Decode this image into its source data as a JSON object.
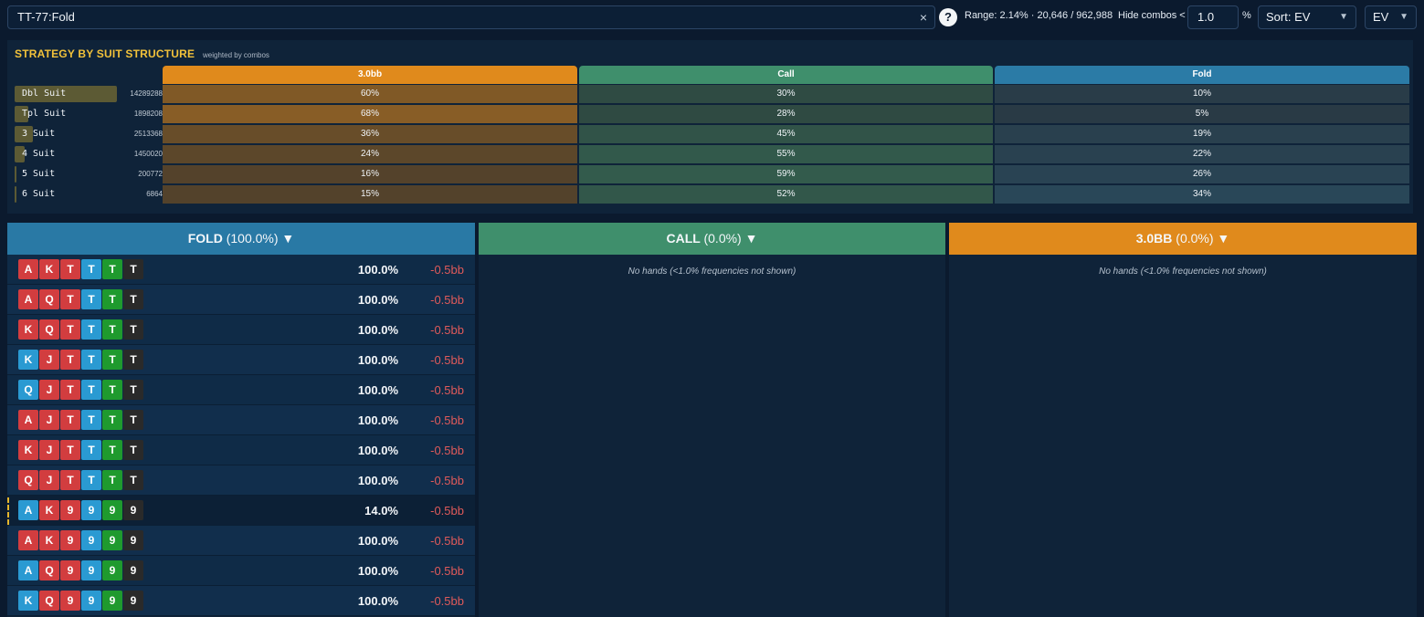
{
  "topbar": {
    "search_value": "TT-77:Fold",
    "clear_icon": "×",
    "help_icon": "?",
    "range_text": "Range: 2.14% · 20,646 / 962,988",
    "hide_label": "Hide combos <",
    "hide_value": "1.0",
    "hide_unit": "%",
    "sort_value": "Sort: EV",
    "ev_value": "EV"
  },
  "suit_panel": {
    "title": "STRATEGY BY SUIT STRUCTURE",
    "subtitle": "weighted by combos",
    "columns": [
      {
        "label": "3.0bb",
        "color": "#e08a1c"
      },
      {
        "label": "Call",
        "color": "#3f8f6c"
      },
      {
        "label": "Fold",
        "color": "#2b7ba6"
      }
    ],
    "rows": [
      {
        "label": "Dbl Suit",
        "count": "14289288",
        "share": 1.0,
        "cells": [
          "60%",
          "30%",
          "10%"
        ],
        "vals": [
          60,
          30,
          10
        ]
      },
      {
        "label": "Tpl Suit",
        "count": "1898208",
        "share": 0.13,
        "cells": [
          "68%",
          "28%",
          "5%"
        ],
        "vals": [
          68,
          28,
          5
        ]
      },
      {
        "label": "3 Suit",
        "count": "2513368",
        "share": 0.18,
        "cells": [
          "36%",
          "45%",
          "19%"
        ],
        "vals": [
          36,
          45,
          19
        ]
      },
      {
        "label": "4 Suit",
        "count": "1450020",
        "share": 0.1,
        "cells": [
          "24%",
          "55%",
          "22%"
        ],
        "vals": [
          24,
          55,
          22
        ]
      },
      {
        "label": "5 Suit",
        "count": "200772",
        "share": 0.014,
        "cells": [
          "16%",
          "59%",
          "26%"
        ],
        "vals": [
          16,
          59,
          26
        ]
      },
      {
        "label": "6 Suit",
        "count": "6864",
        "share": 0.0005,
        "cells": [
          "15%",
          "52%",
          "34%"
        ],
        "vals": [
          15,
          52,
          34
        ]
      }
    ]
  },
  "columns": {
    "fold": {
      "name": "FOLD",
      "pct": "(100.0%)",
      "arrow": "▼",
      "color": "#2979a5"
    },
    "call": {
      "name": "CALL",
      "pct": "(0.0%)",
      "arrow": "▼",
      "color": "#3f8f6c",
      "empty": "No hands (<1.0% frequencies not shown)"
    },
    "raise": {
      "name": "3.0BB",
      "pct": "(0.0%)",
      "arrow": "▼",
      "color": "#e08a1c",
      "empty": "No hands (<1.0% frequencies not shown)"
    }
  },
  "hands": [
    {
      "cards": [
        [
          "A",
          "r"
        ],
        [
          "K",
          "r"
        ],
        [
          "T",
          "r"
        ],
        [
          "T",
          "b"
        ],
        [
          "T",
          "g"
        ],
        [
          "T",
          "k"
        ]
      ],
      "freq": "100.0%",
      "ev": "-0.5bb",
      "partial": false
    },
    {
      "cards": [
        [
          "A",
          "r"
        ],
        [
          "Q",
          "r"
        ],
        [
          "T",
          "r"
        ],
        [
          "T",
          "b"
        ],
        [
          "T",
          "g"
        ],
        [
          "T",
          "k"
        ]
      ],
      "freq": "100.0%",
      "ev": "-0.5bb",
      "partial": false
    },
    {
      "cards": [
        [
          "K",
          "r"
        ],
        [
          "Q",
          "r"
        ],
        [
          "T",
          "r"
        ],
        [
          "T",
          "b"
        ],
        [
          "T",
          "g"
        ],
        [
          "T",
          "k"
        ]
      ],
      "freq": "100.0%",
      "ev": "-0.5bb",
      "partial": false
    },
    {
      "cards": [
        [
          "K",
          "b"
        ],
        [
          "J",
          "r"
        ],
        [
          "T",
          "r"
        ],
        [
          "T",
          "b"
        ],
        [
          "T",
          "g"
        ],
        [
          "T",
          "k"
        ]
      ],
      "freq": "100.0%",
      "ev": "-0.5bb",
      "partial": false
    },
    {
      "cards": [
        [
          "Q",
          "b"
        ],
        [
          "J",
          "r"
        ],
        [
          "T",
          "r"
        ],
        [
          "T",
          "b"
        ],
        [
          "T",
          "g"
        ],
        [
          "T",
          "k"
        ]
      ],
      "freq": "100.0%",
      "ev": "-0.5bb",
      "partial": false
    },
    {
      "cards": [
        [
          "A",
          "r"
        ],
        [
          "J",
          "r"
        ],
        [
          "T",
          "r"
        ],
        [
          "T",
          "b"
        ],
        [
          "T",
          "g"
        ],
        [
          "T",
          "k"
        ]
      ],
      "freq": "100.0%",
      "ev": "-0.5bb",
      "partial": false
    },
    {
      "cards": [
        [
          "K",
          "r"
        ],
        [
          "J",
          "r"
        ],
        [
          "T",
          "r"
        ],
        [
          "T",
          "b"
        ],
        [
          "T",
          "g"
        ],
        [
          "T",
          "k"
        ]
      ],
      "freq": "100.0%",
      "ev": "-0.5bb",
      "partial": false
    },
    {
      "cards": [
        [
          "Q",
          "r"
        ],
        [
          "J",
          "r"
        ],
        [
          "T",
          "r"
        ],
        [
          "T",
          "b"
        ],
        [
          "T",
          "g"
        ],
        [
          "T",
          "k"
        ]
      ],
      "freq": "100.0%",
      "ev": "-0.5bb",
      "partial": false
    },
    {
      "cards": [
        [
          "A",
          "b"
        ],
        [
          "K",
          "r"
        ],
        [
          "9",
          "r"
        ],
        [
          "9",
          "b"
        ],
        [
          "9",
          "g"
        ],
        [
          "9",
          "k"
        ]
      ],
      "freq": "14.0%",
      "ev": "-0.5bb",
      "partial": true
    },
    {
      "cards": [
        [
          "A",
          "r"
        ],
        [
          "K",
          "r"
        ],
        [
          "9",
          "r"
        ],
        [
          "9",
          "b"
        ],
        [
          "9",
          "g"
        ],
        [
          "9",
          "k"
        ]
      ],
      "freq": "100.0%",
      "ev": "-0.5bb",
      "partial": false
    },
    {
      "cards": [
        [
          "A",
          "b"
        ],
        [
          "Q",
          "r"
        ],
        [
          "9",
          "r"
        ],
        [
          "9",
          "b"
        ],
        [
          "9",
          "g"
        ],
        [
          "9",
          "k"
        ]
      ],
      "freq": "100.0%",
      "ev": "-0.5bb",
      "partial": false
    },
    {
      "cards": [
        [
          "K",
          "b"
        ],
        [
          "Q",
          "r"
        ],
        [
          "9",
          "r"
        ],
        [
          "9",
          "b"
        ],
        [
          "9",
          "g"
        ],
        [
          "9",
          "k"
        ]
      ],
      "freq": "100.0%",
      "ev": "-0.5bb",
      "partial": false
    }
  ]
}
